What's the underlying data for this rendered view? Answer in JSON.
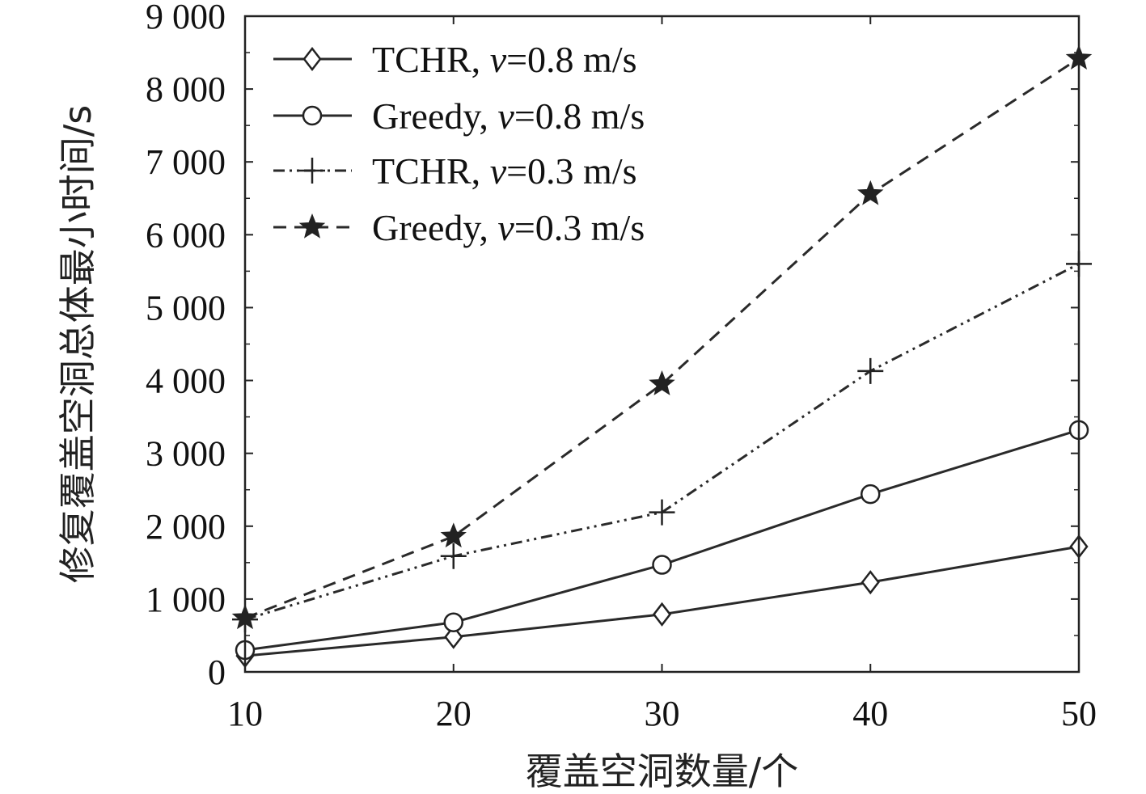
{
  "chart_data": {
    "type": "line",
    "title": "",
    "xlabel": "覆盖空洞数量/个",
    "ylabel": "修复覆盖空洞总体最小时间/s",
    "x": [
      10,
      20,
      30,
      40,
      50
    ],
    "xlim": [
      10,
      50
    ],
    "ylim": [
      0,
      9000
    ],
    "xticks": [
      10,
      20,
      30,
      40,
      50
    ],
    "xtick_labels": [
      "10",
      "20",
      "30",
      "40",
      "50"
    ],
    "yticks": [
      0,
      1000,
      2000,
      3000,
      4000,
      5000,
      6000,
      7000,
      8000,
      9000
    ],
    "ytick_labels": [
      "0",
      "1 000",
      "2 000",
      "3 000",
      "4 000",
      "5 000",
      "6 000",
      "7 000",
      "8 000",
      "9 000"
    ],
    "grid": false,
    "legend_position": "top-left",
    "series": [
      {
        "name": "TCHR, v=0.8 m/s",
        "label_prefix": "TCHR, ",
        "label_var": "v",
        "label_suffix": "=0.8 m/s",
        "marker": "diamond",
        "dash": "solid",
        "values": [
          220,
          480,
          790,
          1230,
          1720
        ]
      },
      {
        "name": "Greedy, v=0.8 m/s",
        "label_prefix": "Greedy, ",
        "label_var": "v",
        "label_suffix": "=0.8 m/s",
        "marker": "circle",
        "dash": "solid",
        "values": [
          300,
          680,
          1470,
          2440,
          3320
        ]
      },
      {
        "name": "TCHR, v=0.3 m/s",
        "label_prefix": "TCHR, ",
        "label_var": "v",
        "label_suffix": "=0.3 m/s",
        "marker": "plus",
        "dash": "dashdot",
        "values": [
          720,
          1590,
          2190,
          4130,
          5600
        ]
      },
      {
        "name": "Greedy, v=0.3 m/s",
        "label_prefix": "Greedy, ",
        "label_var": "v",
        "label_suffix": "=0.3 m/s",
        "marker": "star",
        "dash": "dashed",
        "values": [
          740,
          1860,
          3950,
          6560,
          8420
        ]
      }
    ]
  }
}
